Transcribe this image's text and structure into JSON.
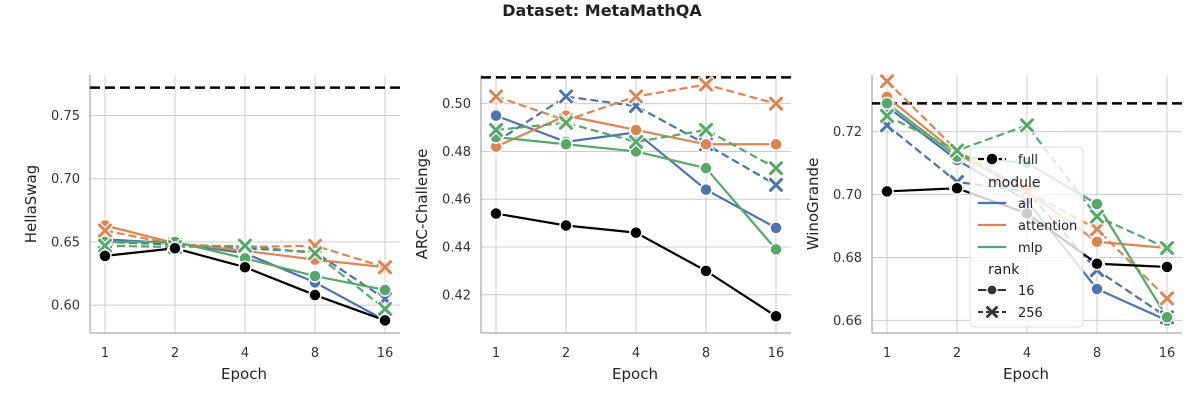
{
  "chart_data": {
    "type": "line",
    "suptitle": "Dataset: MetaMathQA",
    "x_categories": [
      "1",
      "2",
      "4",
      "8",
      "16"
    ],
    "xlabel": "Epoch",
    "colors": {
      "full": "#000000",
      "all": "#4c72b0",
      "attention": "#dd8452",
      "mlp": "#55a868",
      "grid": "#cccccc",
      "axis": "#aaaaaa"
    },
    "legend": {
      "full_label": "full",
      "module_title": "module",
      "module_items": [
        "all",
        "attention",
        "mlp"
      ],
      "rank_title": "rank",
      "rank_items": [
        "16",
        "256"
      ]
    },
    "panels": [
      {
        "ylabel": "HellaSwag",
        "ylim": [
          0.578,
          0.782
        ],
        "yticks": [
          0.6,
          0.65,
          0.7,
          0.75
        ],
        "ytick_labels": [
          "0.60",
          "0.65",
          "0.70",
          "0.75"
        ],
        "full_reference": 0.772,
        "series": [
          {
            "module": "all",
            "rank": "16",
            "values": [
              0.652,
              0.649,
              0.641,
              0.618,
              0.588
            ]
          },
          {
            "module": "all",
            "rank": "256",
            "values": [
              0.65,
              0.648,
              0.645,
              0.642,
              0.605
            ]
          },
          {
            "module": "attention",
            "rank": "16",
            "values": [
              0.663,
              0.649,
              0.643,
              0.636,
              0.63
            ]
          },
          {
            "module": "attention",
            "rank": "256",
            "values": [
              0.659,
              0.648,
              0.646,
              0.647,
              0.63
            ]
          },
          {
            "module": "mlp",
            "rank": "16",
            "values": [
              0.65,
              0.65,
              0.637,
              0.623,
              0.612
            ]
          },
          {
            "module": "mlp",
            "rank": "256",
            "values": [
              0.647,
              0.646,
              0.647,
              0.641,
              0.597
            ]
          },
          {
            "module": "full",
            "rank": "16",
            "values": [
              0.639,
              0.645,
              0.63,
              0.608,
              0.588
            ]
          }
        ]
      },
      {
        "ylabel": "ARC-Challenge",
        "ylim": [
          0.404,
          0.512
        ],
        "yticks": [
          0.42,
          0.44,
          0.46,
          0.48,
          0.5
        ],
        "ytick_labels": [
          "0.42",
          "0.44",
          "0.46",
          "0.48",
          "0.50"
        ],
        "full_reference": 0.511,
        "series": [
          {
            "module": "all",
            "rank": "16",
            "values": [
              0.495,
              0.484,
              0.488,
              0.464,
              0.448
            ]
          },
          {
            "module": "all",
            "rank": "256",
            "values": [
              0.484,
              0.503,
              0.499,
              0.483,
              0.466
            ]
          },
          {
            "module": "attention",
            "rank": "16",
            "values": [
              0.482,
              0.495,
              0.489,
              0.483,
              0.483
            ]
          },
          {
            "module": "attention",
            "rank": "256",
            "values": [
              0.503,
              0.493,
              0.503,
              0.508,
              0.5
            ]
          },
          {
            "module": "mlp",
            "rank": "16",
            "values": [
              0.486,
              0.483,
              0.48,
              0.473,
              0.439
            ]
          },
          {
            "module": "mlp",
            "rank": "256",
            "values": [
              0.489,
              0.492,
              0.484,
              0.489,
              0.473
            ]
          },
          {
            "module": "full",
            "rank": "16",
            "values": [
              0.454,
              0.449,
              0.446,
              0.43,
              0.411
            ]
          }
        ]
      },
      {
        "ylabel": "WinoGrande",
        "ylim": [
          0.656,
          0.738
        ],
        "yticks": [
          0.66,
          0.68,
          0.7,
          0.72
        ],
        "ytick_labels": [
          "0.66",
          "0.68",
          "0.70",
          "0.72"
        ],
        "full_reference": 0.729,
        "series": [
          {
            "module": "all",
            "rank": "16",
            "values": [
              0.728,
              0.711,
              0.698,
              0.67,
              0.66
            ]
          },
          {
            "module": "all",
            "rank": "256",
            "values": [
              0.722,
              0.704,
              0.701,
              0.676,
              0.661
            ]
          },
          {
            "module": "attention",
            "rank": "16",
            "values": [
              0.731,
              0.713,
              0.701,
              0.685,
              0.683
            ]
          },
          {
            "module": "attention",
            "rank": "256",
            "values": [
              0.736,
              0.714,
              0.701,
              0.689,
              0.667
            ]
          },
          {
            "module": "mlp",
            "rank": "16",
            "values": [
              0.729,
              0.712,
              0.71,
              0.697,
              0.661
            ]
          },
          {
            "module": "mlp",
            "rank": "256",
            "values": [
              0.725,
              0.714,
              0.722,
              0.693,
              0.683
            ]
          },
          {
            "module": "full",
            "rank": "16",
            "values": [
              0.701,
              0.702,
              0.694,
              0.678,
              0.677
            ]
          }
        ]
      }
    ]
  }
}
